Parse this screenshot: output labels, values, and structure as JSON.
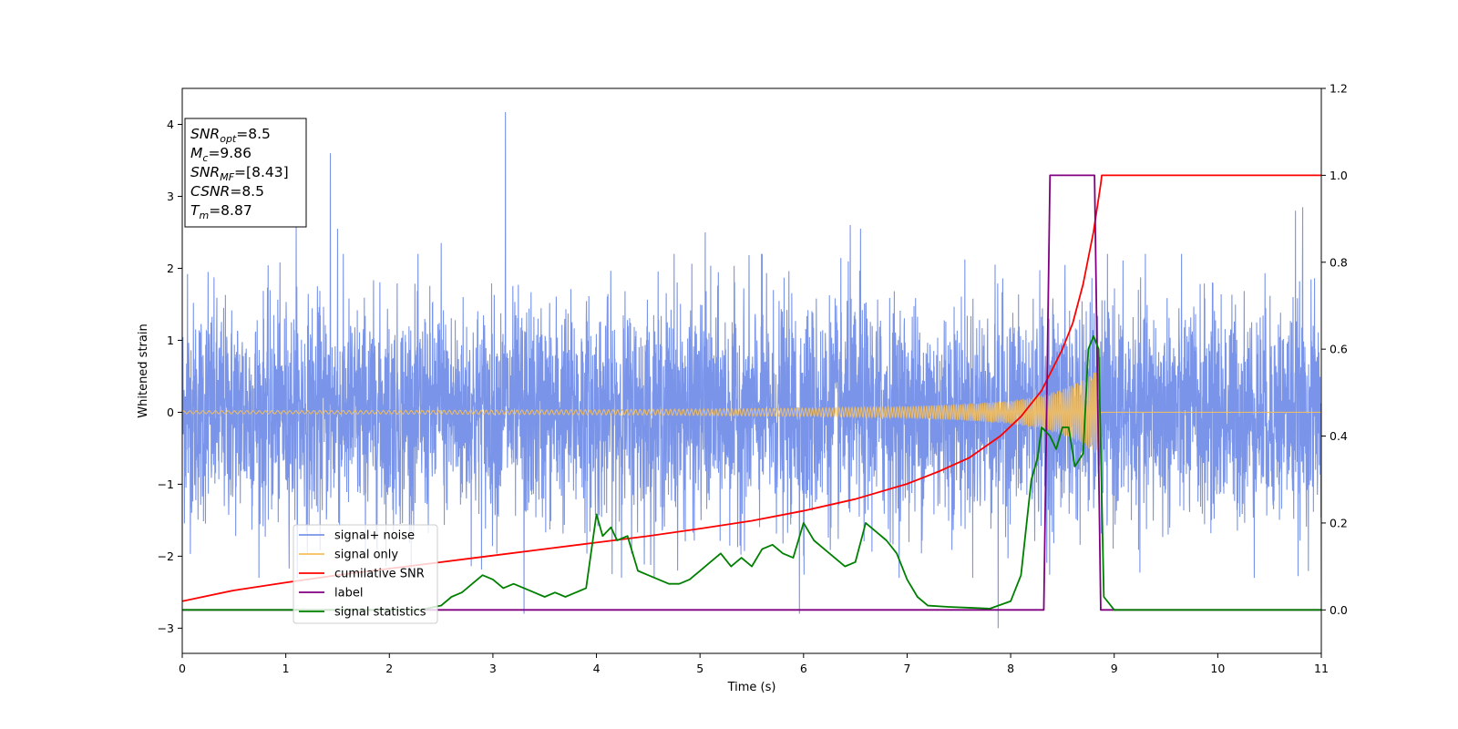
{
  "chart_data": {
    "type": "line",
    "xlabel": "Time (s)",
    "ylabel": "Whitened strain",
    "xlim": [
      0,
      11
    ],
    "ylim_left": [
      -3.35,
      4.5
    ],
    "ylim_right": [
      -0.1,
      1.2
    ],
    "x_ticks": [
      0,
      1,
      2,
      3,
      4,
      5,
      6,
      7,
      8,
      9,
      10,
      11
    ],
    "y_ticks_left": [
      -3,
      -2,
      -1,
      0,
      1,
      2,
      3,
      4
    ],
    "y_ticks_left_labels": [
      "−3",
      "−2",
      "−1",
      "0",
      "1",
      "2",
      "3",
      "4"
    ],
    "y_ticks_right": [
      0.0,
      0.2,
      0.4,
      0.6,
      0.8,
      1.0,
      1.2
    ],
    "y_ticks_right_labels": [
      "0.0",
      "0.2",
      "0.4",
      "0.6",
      "0.8",
      "1.0",
      "1.2"
    ],
    "grid": false,
    "legend_position": "lower-left",
    "annotation": [
      {
        "main": "SNR",
        "sub": "opt",
        "value": "=8.5"
      },
      {
        "main": "M",
        "sub": "c",
        "value": "=9.86"
      },
      {
        "main": "SNR",
        "sub": "MF",
        "value": "=[8.43]"
      },
      {
        "main": "CSNR",
        "sub": "",
        "value": "=8.5"
      },
      {
        "main": "T",
        "sub": "m",
        "value": "=8.87"
      }
    ],
    "series": [
      {
        "name": "signal+ noise",
        "color": "#7994e8",
        "axis": "left",
        "description_values": {
          "noise_std": 0.75,
          "max_peak": 4.17,
          "max_peak_time": 3.12,
          "min_trough": -3.0,
          "min_trough_time": 7.9
        },
        "spikes": [
          [
            0.05,
            1.92
          ],
          [
            0.25,
            1.95
          ],
          [
            1.1,
            2.6
          ],
          [
            1.43,
            3.6
          ],
          [
            1.5,
            2.55
          ],
          [
            2.5,
            2.35
          ],
          [
            3.12,
            4.17
          ],
          [
            3.3,
            -2.8
          ],
          [
            4.75,
            2.2
          ],
          [
            5.05,
            2.5
          ],
          [
            5.6,
            2.2
          ],
          [
            5.96,
            -2.8
          ],
          [
            6.45,
            2.6
          ],
          [
            6.55,
            2.55
          ],
          [
            7.88,
            -3.0
          ],
          [
            10.75,
            2.8
          ],
          [
            10.82,
            2.85
          ],
          [
            11.0,
            -2.55
          ]
        ]
      },
      {
        "name": "signal only",
        "color": "#f5bf5c",
        "axis": "left",
        "chirp_end": 8.87,
        "envelope": [
          [
            0,
            0.02
          ],
          [
            2,
            0.025
          ],
          [
            4,
            0.035
          ],
          [
            6,
            0.055
          ],
          [
            7,
            0.08
          ],
          [
            7.5,
            0.11
          ],
          [
            8.0,
            0.16
          ],
          [
            8.3,
            0.23
          ],
          [
            8.5,
            0.32
          ],
          [
            8.7,
            0.45
          ],
          [
            8.85,
            0.6
          ],
          [
            8.87,
            0.0
          ]
        ]
      },
      {
        "name": "cumilative SNR",
        "color": "#ff0000",
        "axis": "right",
        "x": [
          0,
          0.5,
          1,
          1.5,
          2,
          2.5,
          3,
          3.5,
          4,
          4.5,
          5,
          5.5,
          6,
          6.5,
          7,
          7.3,
          7.6,
          7.9,
          8.1,
          8.3,
          8.5,
          8.6,
          8.7,
          8.8,
          8.87,
          8.88,
          9,
          10,
          11
        ],
        "y": [
          0.02,
          0.045,
          0.063,
          0.08,
          0.095,
          0.11,
          0.125,
          0.14,
          0.155,
          0.17,
          0.187,
          0.205,
          0.228,
          0.255,
          0.29,
          0.318,
          0.35,
          0.4,
          0.445,
          0.505,
          0.6,
          0.66,
          0.75,
          0.87,
          0.98,
          1.0,
          1.0,
          1.0,
          1.0
        ]
      },
      {
        "name": "label",
        "color": "#800080",
        "axis": "right",
        "x": [
          0,
          8.32,
          8.38,
          8.81,
          8.87,
          11
        ],
        "y": [
          0,
          0,
          1,
          1,
          0,
          0
        ]
      },
      {
        "name": "signal statistics",
        "color": "#008000",
        "axis": "right",
        "x": [
          0,
          2.0,
          2.3,
          2.5,
          2.6,
          2.7,
          2.8,
          2.9,
          3.0,
          3.1,
          3.2,
          3.3,
          3.4,
          3.5,
          3.6,
          3.7,
          3.8,
          3.9,
          4.0,
          4.06,
          4.14,
          4.2,
          4.3,
          4.4,
          4.5,
          4.6,
          4.7,
          4.8,
          4.9,
          5.0,
          5.1,
          5.2,
          5.3,
          5.4,
          5.5,
          5.6,
          5.7,
          5.8,
          5.9,
          6.0,
          6.1,
          6.2,
          6.3,
          6.4,
          6.5,
          6.6,
          6.7,
          6.8,
          6.9,
          7.0,
          7.1,
          7.2,
          7.4,
          7.6,
          7.8,
          8.0,
          8.1,
          8.2,
          8.26,
          8.3,
          8.38,
          8.44,
          8.5,
          8.56,
          8.62,
          8.7,
          8.75,
          8.8,
          8.85,
          8.9,
          9.0,
          9.2,
          11
        ],
        "y": [
          0,
          0,
          0.0,
          0.01,
          0.03,
          0.04,
          0.06,
          0.08,
          0.07,
          0.05,
          0.06,
          0.05,
          0.04,
          0.03,
          0.04,
          0.03,
          0.04,
          0.05,
          0.22,
          0.17,
          0.19,
          0.16,
          0.17,
          0.09,
          0.08,
          0.07,
          0.06,
          0.06,
          0.07,
          0.09,
          0.11,
          0.13,
          0.1,
          0.12,
          0.1,
          0.14,
          0.15,
          0.13,
          0.12,
          0.2,
          0.16,
          0.14,
          0.12,
          0.1,
          0.11,
          0.2,
          0.18,
          0.16,
          0.13,
          0.07,
          0.03,
          0.01,
          0.007,
          0.005,
          0.003,
          0.02,
          0.08,
          0.3,
          0.35,
          0.42,
          0.4,
          0.37,
          0.42,
          0.42,
          0.33,
          0.36,
          0.6,
          0.63,
          0.6,
          0.03,
          0.0,
          0.0,
          0.0
        ]
      }
    ]
  }
}
